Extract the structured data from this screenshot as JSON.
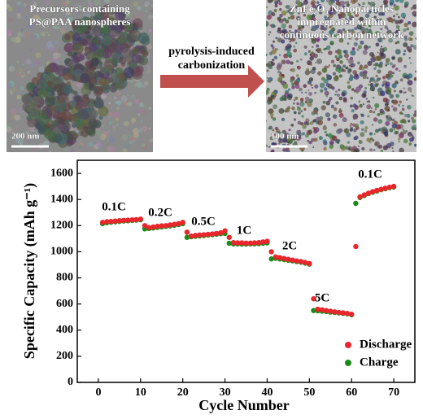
{
  "images": [
    {
      "caption": [
        "Precursors-containing",
        "PS@PAA nanospheres"
      ],
      "scale_bar": "200 nm"
    },
    {
      "caption": [
        "ZnFe₂O₄ Nanoparticles",
        "impregnated within",
        "continuous carbon network"
      ],
      "scale_bar": "100 nm"
    }
  ],
  "arrow_label": [
    "pyrolysis-induced",
    "carbonization"
  ],
  "chart_data": {
    "type": "scatter",
    "x_label": "Cycle Number",
    "y_label": "Specific Capacity (mAh g⁻¹)",
    "x": [
      1,
      2,
      3,
      4,
      5,
      6,
      7,
      8,
      9,
      10,
      11,
      12,
      13,
      14,
      15,
      16,
      17,
      18,
      19,
      20,
      21,
      22,
      23,
      24,
      25,
      26,
      27,
      28,
      29,
      30,
      31,
      32,
      33,
      34,
      35,
      36,
      37,
      38,
      39,
      40,
      41,
      42,
      43,
      44,
      45,
      46,
      47,
      48,
      49,
      50,
      51,
      52,
      53,
      54,
      55,
      56,
      57,
      58,
      59,
      60,
      61,
      62,
      63,
      64,
      65,
      66,
      67,
      68,
      69,
      70
    ],
    "series": [
      {
        "name": "Discharge",
        "color": "#e8262b",
        "values": [
          1225,
          1230,
          1232,
          1235,
          1238,
          1240,
          1242,
          1244,
          1246,
          1250,
          1200,
          1185,
          1190,
          1195,
          1198,
          1200,
          1205,
          1210,
          1215,
          1225,
          1150,
          1120,
          1125,
          1128,
          1130,
          1133,
          1136,
          1140,
          1145,
          1160,
          1110,
          1070,
          1068,
          1068,
          1066,
          1066,
          1068,
          1070,
          1075,
          1080,
          1000,
          960,
          955,
          948,
          942,
          936,
          930,
          925,
          918,
          910,
          640,
          560,
          555,
          550,
          545,
          540,
          535,
          532,
          528,
          522,
          1040,
          1420,
          1435,
          1448,
          1460,
          1470,
          1478,
          1486,
          1494,
          1500
        ]
      },
      {
        "name": "Charge",
        "color": "#1a8a1a",
        "values": [
          1215,
          1222,
          1226,
          1229,
          1232,
          1235,
          1237,
          1240,
          1242,
          1245,
          1175,
          1178,
          1182,
          1186,
          1190,
          1194,
          1198,
          1203,
          1208,
          1215,
          1110,
          1115,
          1118,
          1121,
          1124,
          1128,
          1131,
          1134,
          1138,
          1140,
          1065,
          1060,
          1060,
          1059,
          1059,
          1060,
          1061,
          1062,
          1065,
          1068,
          945,
          950,
          945,
          940,
          935,
          930,
          925,
          920,
          913,
          905,
          550,
          548,
          545,
          542,
          538,
          535,
          532,
          528,
          525,
          518,
          1370,
          1415,
          1430,
          1445,
          1455,
          1465,
          1475,
          1482,
          1490,
          1495
        ]
      }
    ],
    "annotations": [
      "0.1C",
      "0.2C",
      "0.5C",
      "1C",
      "2C",
      "5C",
      "0.1C"
    ],
    "xlim": [
      -5,
      75
    ],
    "xticks": [
      0,
      10,
      20,
      30,
      40,
      50,
      60,
      70
    ],
    "ylim": [
      0,
      1700
    ],
    "yticks": [
      0,
      200,
      400,
      600,
      800,
      1000,
      1200,
      1400,
      1600
    ],
    "legend": "lower right"
  }
}
